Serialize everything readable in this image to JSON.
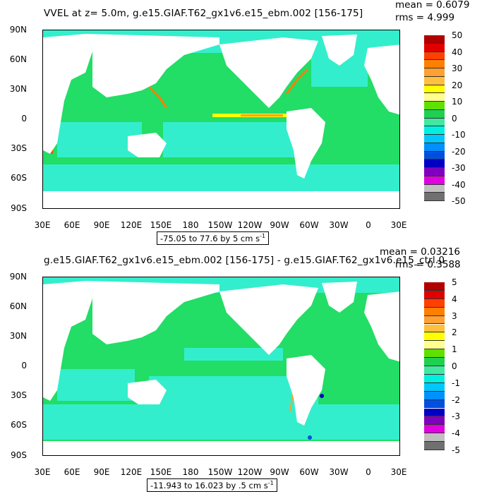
{
  "panels": [
    {
      "title": "VVEL at z=   5.0m, g.e15.GIAF.T62_gx1v6.e15_ebm.002 [156-175]",
      "mean": "mean = 0.6079",
      "rms": "rms = 4.999",
      "range_text": "-75.05 to 77.6 by 5 cm s",
      "unit_exponent": "-1",
      "colorbar_labels": [
        "50",
        "40",
        "30",
        "20",
        "10",
        "0",
        "-10",
        "-20",
        "-30",
        "-40",
        "-50"
      ]
    },
    {
      "title": "g.e15.GIAF.T62_gx1v6.e15_ebm.002 [156-175] - g.e15.GIAF.T62_gx1v6.e15_ctrl.0",
      "mean": "mean = 0.03216",
      "rms": "rms = 0.3588",
      "range_text": "-11.943 to 16.023 by .5 cm s",
      "unit_exponent": "-1",
      "colorbar_labels": [
        "5",
        "4",
        "3",
        "2",
        "1",
        "0",
        "-1",
        "-2",
        "-3",
        "-4",
        "-5"
      ]
    }
  ],
  "axes": {
    "lat_labels": [
      "90N",
      "60N",
      "30N",
      "0",
      "30S",
      "60S",
      "90S"
    ],
    "lon_labels": [
      "30E",
      "60E",
      "90E",
      "120E",
      "150E",
      "180",
      "150W",
      "120W",
      "90W",
      "60W",
      "30W",
      "0",
      "30E"
    ]
  },
  "colors": {
    "colorbar": [
      "#b00000",
      "#e00000",
      "#ff4000",
      "#ff8000",
      "#ffa030",
      "#ffc040",
      "#ffff00",
      "#ffff90",
      "#60e000",
      "#20d050",
      "#40e8a0",
      "#00f0e0",
      "#00c8ff",
      "#0090ff",
      "#0050e0",
      "#0000c0",
      "#8000c0",
      "#e000e0",
      "#c0c0c0",
      "#707070"
    ],
    "ocean_base": "#22dd66",
    "ocean_cyan": "#33eecc",
    "land": "#ffffff"
  }
}
